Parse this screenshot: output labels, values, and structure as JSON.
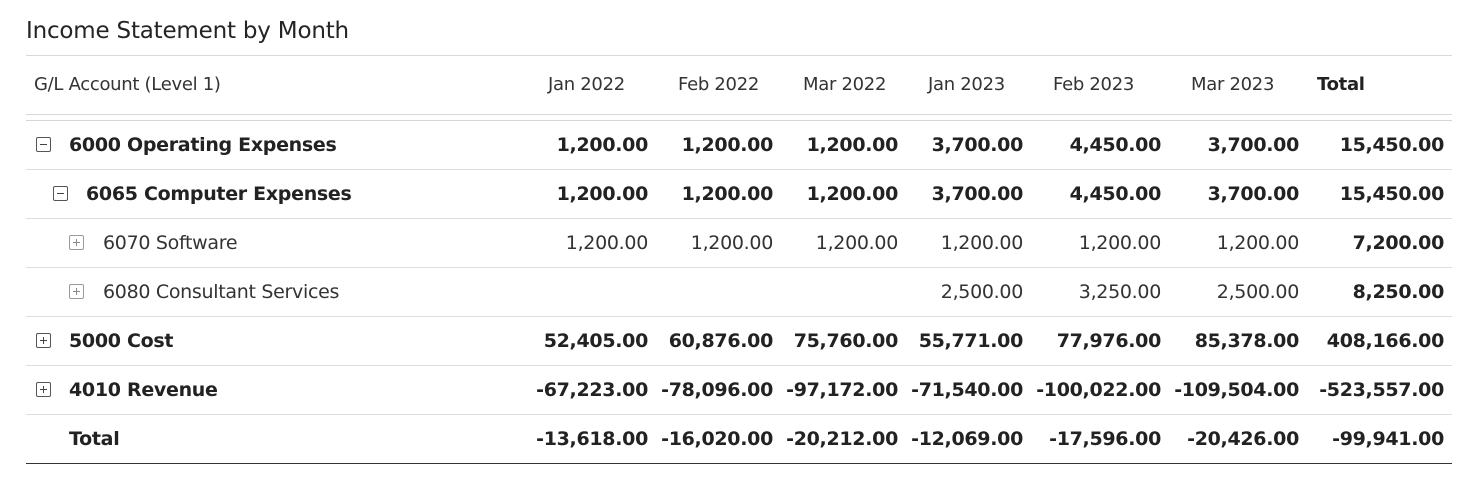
{
  "visual": {
    "title": "Income Statement by Month"
  },
  "table": {
    "headers": {
      "account": "G/L Account (Level 1)",
      "m1": "Jan 2022",
      "m2": "Feb 2022",
      "m3": "Mar 2022",
      "m4": "Jan 2023",
      "m5": "Feb 2023",
      "m6": "Mar 2023",
      "total": "Total"
    },
    "rows": [
      {
        "account": "6000 Operating Expenses",
        "toggle": "collapse",
        "level": 1,
        "m1": "1,200.00",
        "m2": "1,200.00",
        "m3": "1,200.00",
        "m4": "3,700.00",
        "m5": "4,450.00",
        "m6": "3,700.00",
        "total": "15,450.00"
      },
      {
        "account": "6065 Computer Expenses",
        "toggle": "collapse",
        "level": 2,
        "m1": "1,200.00",
        "m2": "1,200.00",
        "m3": "1,200.00",
        "m4": "3,700.00",
        "m5": "4,450.00",
        "m6": "3,700.00",
        "total": "15,450.00"
      },
      {
        "account": "6070 Software",
        "toggle": "expand",
        "level": 3,
        "m1": "1,200.00",
        "m2": "1,200.00",
        "m3": "1,200.00",
        "m4": "1,200.00",
        "m5": "1,200.00",
        "m6": "1,200.00",
        "total": "7,200.00"
      },
      {
        "account": "6080 Consultant Services",
        "toggle": "expand",
        "level": 3,
        "m1": "",
        "m2": "",
        "m3": "",
        "m4": "2,500.00",
        "m5": "3,250.00",
        "m6": "2,500.00",
        "total": "8,250.00"
      },
      {
        "account": "5000 Cost",
        "toggle": "expand",
        "level": 1,
        "m1": "52,405.00",
        "m2": "60,876.00",
        "m3": "75,760.00",
        "m4": "55,771.00",
        "m5": "77,976.00",
        "m6": "85,378.00",
        "total": "408,166.00"
      },
      {
        "account": "4010 Revenue",
        "toggle": "expand",
        "level": 1,
        "m1": "-67,223.00",
        "m2": "-78,096.00",
        "m3": "-97,172.00",
        "m4": "-71,540.00",
        "m5": "-100,022.00",
        "m6": "-109,504.00",
        "total": "-523,557.00"
      }
    ],
    "grand_total": {
      "account": "Total",
      "m1": "-13,618.00",
      "m2": "-16,020.00",
      "m3": "-20,212.00",
      "m4": "-12,069.00",
      "m5": "-17,596.00",
      "m6": "-20,426.00",
      "total": "-99,941.00"
    }
  }
}
